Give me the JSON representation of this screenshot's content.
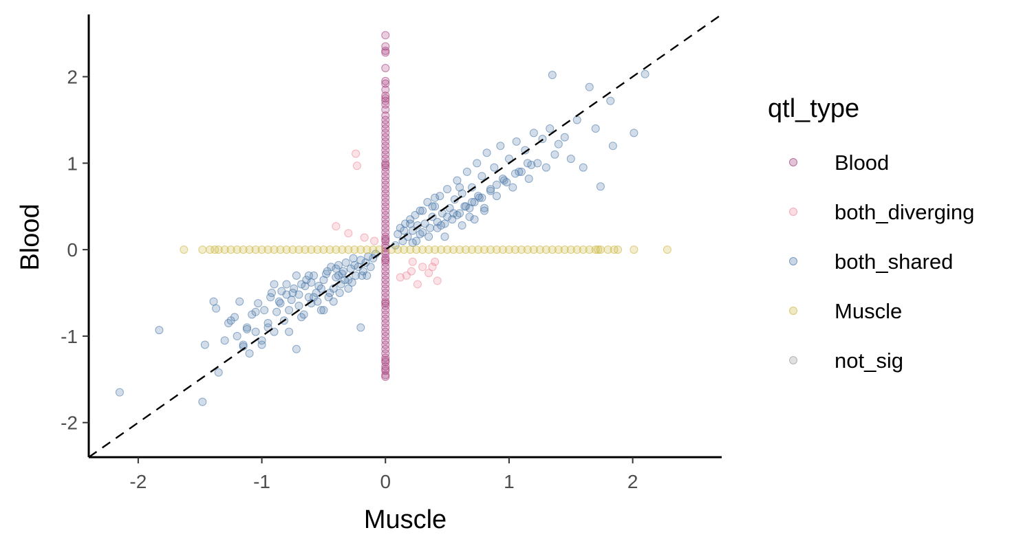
{
  "chart_data": {
    "type": "scatter",
    "xlabel": "Muscle",
    "ylabel": "Blood",
    "xlim": [
      -2.4,
      2.72
    ],
    "ylim": [
      -2.4,
      2.72
    ],
    "x_ticks": [
      -2,
      -1,
      0,
      1,
      2
    ],
    "x_tick_labels": [
      "-2",
      "-1",
      "0",
      "1",
      "2"
    ],
    "y_ticks": [
      -2,
      -1,
      0,
      1,
      2
    ],
    "y_tick_labels": [
      "-2",
      "-1",
      "0",
      "1",
      "2"
    ],
    "grid": false,
    "reference_line": {
      "style": "dashed",
      "slope": 1,
      "intercept": 0
    },
    "legend": {
      "title": "qtl_type",
      "placement": "right",
      "entries": [
        {
          "name": "Blood",
          "color": "#A23A7C"
        },
        {
          "name": "both_diverging",
          "color": "#F08A9A"
        },
        {
          "name": "both_shared",
          "color": "#4A78A8"
        },
        {
          "name": "Muscle",
          "color": "#CBB640"
        },
        {
          "name": "not_sig",
          "color": "#9A9A9A"
        }
      ]
    },
    "series": [
      {
        "name": "Blood",
        "color": "#A23A7C",
        "x": [
          0,
          0,
          0,
          0,
          0,
          0,
          0,
          0,
          0,
          0,
          0,
          0,
          0,
          0,
          0,
          0,
          0,
          0,
          0,
          0,
          0,
          0,
          0,
          0,
          0,
          0,
          0,
          0,
          0,
          0,
          0,
          0,
          0,
          0,
          0,
          0,
          0,
          0,
          0,
          0,
          0,
          0,
          0,
          0,
          0,
          0,
          0,
          0,
          0,
          0,
          0,
          0,
          0,
          0,
          0,
          0,
          0,
          0,
          0,
          0,
          0,
          0,
          0,
          0,
          0,
          0,
          0,
          0,
          0,
          0,
          0,
          0,
          0,
          0,
          0,
          0,
          0,
          0,
          0,
          0,
          0,
          0
        ],
        "y": [
          2.48,
          2.35,
          2.3,
          2.28,
          2.1,
          1.95,
          1.78,
          1.72,
          1.68,
          1.62,
          1.55,
          1.5,
          1.45,
          1.4,
          1.35,
          1.3,
          1.25,
          1.2,
          1.15,
          1.1,
          1.05,
          1.0,
          0.95,
          0.9,
          0.85,
          0.8,
          0.75,
          0.7,
          0.65,
          0.6,
          0.55,
          0.5,
          0.45,
          0.4,
          0.35,
          0.3,
          0.25,
          0.2,
          0.15,
          0.1,
          0.05,
          -0.05,
          -0.1,
          -0.15,
          -0.2,
          -0.25,
          -0.3,
          -0.35,
          -0.4,
          -0.45,
          -0.5,
          -0.55,
          -0.6,
          -0.65,
          -0.7,
          -0.75,
          -0.8,
          -0.85,
          -0.9,
          -0.95,
          -1.0,
          -1.05,
          -1.1,
          -1.15,
          -1.2,
          -1.25,
          -1.3,
          -1.35,
          -1.4,
          -1.45,
          -1.47,
          -0.12,
          0.12,
          -0.02,
          0.02,
          1.92,
          1.85,
          1.75,
          0.98,
          -0.62,
          -1.38,
          -1.28
        ]
      },
      {
        "name": "both_diverging",
        "color": "#F08A9A",
        "x": [
          -0.24,
          -0.23,
          -0.4,
          -0.3,
          -0.17,
          -0.09,
          0.12,
          0.17,
          0.21,
          0.22,
          0.26,
          0.3,
          0.35,
          0.38,
          0.4,
          0.42
        ],
        "y": [
          1.11,
          0.97,
          0.27,
          0.19,
          0.14,
          0.1,
          -0.32,
          -0.3,
          -0.25,
          -0.14,
          -0.4,
          -0.2,
          -0.27,
          -0.2,
          -0.14,
          -0.36
        ]
      },
      {
        "name": "both_shared",
        "color": "#4A78A8",
        "x": [
          -2.15,
          -1.83,
          -1.48,
          -1.46,
          -1.39,
          -1.37,
          -1.35,
          -1.3,
          -1.27,
          -1.22,
          -1.2,
          -1.18,
          -1.15,
          -1.12,
          -1.1,
          -1.08,
          -1.05,
          -1.03,
          -1.0,
          -0.98,
          -0.95,
          -0.93,
          -0.9,
          -0.88,
          -0.86,
          -0.84,
          -0.82,
          -0.8,
          -0.78,
          -0.76,
          -0.74,
          -0.72,
          -0.7,
          -0.68,
          -0.66,
          -0.64,
          -0.62,
          -0.6,
          -0.58,
          -0.56,
          -0.54,
          -0.52,
          -0.5,
          -0.48,
          -0.46,
          -0.44,
          -0.42,
          -0.4,
          -0.38,
          -0.36,
          -0.34,
          -0.32,
          -0.3,
          -0.28,
          -0.26,
          -0.24,
          -0.22,
          -0.2,
          -0.18,
          -0.16,
          -0.14,
          -0.12,
          -0.1,
          -0.08,
          -1.25,
          -1.15,
          -1.05,
          -0.95,
          -0.85,
          -0.75,
          -0.65,
          -0.55,
          -0.45,
          -0.35,
          -0.25,
          -0.15,
          -1.0,
          -0.9,
          -0.8,
          -0.7,
          -0.6,
          -0.5,
          -0.4,
          -0.3,
          -0.2,
          -0.92,
          -0.78,
          -0.58,
          -0.42,
          -0.27,
          -0.62,
          -0.47,
          -0.37,
          -0.19,
          -0.72,
          -0.52,
          -0.33,
          -1.12,
          -0.68,
          -0.38,
          0.08,
          0.1,
          0.12,
          0.14,
          0.16,
          0.18,
          0.2,
          0.22,
          0.24,
          0.26,
          0.28,
          0.3,
          0.32,
          0.34,
          0.36,
          0.38,
          0.4,
          0.42,
          0.44,
          0.46,
          0.48,
          0.5,
          0.52,
          0.54,
          0.56,
          0.58,
          0.6,
          0.62,
          0.64,
          0.66,
          0.68,
          0.7,
          0.72,
          0.74,
          0.76,
          0.78,
          0.8,
          0.82,
          0.85,
          0.88,
          0.9,
          0.93,
          0.96,
          1.0,
          1.03,
          1.06,
          1.1,
          1.13,
          1.16,
          1.2,
          1.23,
          1.27,
          1.3,
          1.33,
          1.37,
          1.4,
          1.45,
          1.5,
          1.55,
          1.6,
          1.65,
          1.7,
          1.74,
          1.82,
          1.84,
          2.01,
          2.1,
          1.35,
          0.4,
          0.6,
          0.8,
          0.3,
          0.5,
          0.7,
          0.9,
          0.25,
          0.45,
          0.65,
          0.85,
          1.05,
          0.35,
          0.55,
          0.75,
          0.95,
          1.15,
          0.2,
          0.62,
          0.48,
          0.28,
          0.72,
          0.15,
          0.38,
          0.58,
          0.78,
          0.98,
          1.18,
          0.22,
          0.42,
          0.68,
          1.08
        ],
        "y": [
          -1.65,
          -0.93,
          -1.76,
          -1.1,
          -0.6,
          -0.68,
          -1.42,
          -1.05,
          -0.85,
          -0.78,
          -1.0,
          -0.6,
          -1.1,
          -0.9,
          -1.2,
          -0.75,
          -0.95,
          -0.62,
          -1.05,
          -0.7,
          -0.85,
          -0.55,
          -0.95,
          -0.72,
          -0.6,
          -0.48,
          -0.82,
          -0.4,
          -0.7,
          -0.58,
          -0.45,
          -1.15,
          -0.52,
          -0.4,
          -0.75,
          -0.35,
          -0.55,
          -0.62,
          -0.3,
          -0.5,
          -0.42,
          -0.7,
          -0.35,
          -0.28,
          -0.55,
          -0.2,
          -0.45,
          -0.32,
          -0.18,
          -0.4,
          -0.25,
          -0.15,
          -0.35,
          -0.22,
          -0.1,
          -0.3,
          -0.2,
          -0.12,
          -0.25,
          -0.15,
          -0.08,
          -0.2,
          -0.1,
          -0.05,
          -0.82,
          -1.12,
          -0.72,
          -0.9,
          -0.62,
          -0.5,
          -0.42,
          -0.6,
          -0.5,
          -0.28,
          -0.18,
          -0.3,
          -1.1,
          -0.4,
          -0.52,
          -0.65,
          -0.38,
          -0.7,
          -0.22,
          -0.45,
          -0.9,
          -0.5,
          -0.95,
          -0.55,
          -0.6,
          -0.38,
          -0.3,
          -0.25,
          -0.5,
          -0.3,
          -0.3,
          -0.45,
          -0.35,
          -0.92,
          -0.78,
          -0.3,
          0.05,
          0.18,
          0.25,
          0.1,
          0.3,
          0.15,
          0.35,
          0.22,
          0.4,
          0.28,
          0.18,
          0.45,
          0.3,
          0.55,
          0.25,
          0.38,
          0.5,
          0.32,
          0.62,
          0.42,
          0.3,
          0.7,
          0.48,
          0.35,
          0.58,
          0.8,
          0.42,
          0.65,
          0.5,
          0.9,
          0.38,
          0.72,
          0.55,
          1.0,
          0.6,
          0.85,
          0.48,
          1.12,
          0.7,
          0.95,
          0.62,
          1.2,
          0.8,
          1.05,
          0.72,
          1.25,
          0.9,
          1.15,
          0.82,
          1.35,
          1.0,
          1.28,
          0.95,
          1.4,
          1.1,
          1.22,
          1.3,
          1.05,
          1.5,
          0.95,
          1.88,
          1.4,
          0.73,
          1.72,
          1.2,
          1.35,
          2.03,
          2.02,
          0.6,
          0.72,
          0.45,
          0.2,
          0.38,
          0.55,
          0.75,
          0.1,
          0.28,
          0.5,
          0.68,
          0.88,
          0.15,
          0.42,
          0.62,
          0.82,
          1.0,
          0.3,
          0.28,
          0.15,
          0.45,
          0.35,
          0.22,
          0.5,
          0.4,
          0.6,
          0.78,
          0.98,
          0.08,
          0.25,
          0.48,
          0.9
        ]
      },
      {
        "name": "Muscle",
        "color": "#CBB640",
        "x": [
          -1.63,
          -1.48,
          -1.42,
          -1.38,
          -1.35,
          -1.3,
          -1.25,
          -1.2,
          -1.15,
          -1.1,
          -1.05,
          -1.0,
          -0.95,
          -0.9,
          -0.85,
          -0.8,
          -0.75,
          -0.7,
          -0.65,
          -0.6,
          -0.55,
          -0.5,
          -0.45,
          -0.4,
          -0.35,
          -0.3,
          -0.25,
          -0.2,
          -0.15,
          -0.1,
          -0.05,
          0.05,
          0.1,
          0.15,
          0.2,
          0.25,
          0.3,
          0.35,
          0.4,
          0.45,
          0.5,
          0.55,
          0.6,
          0.65,
          0.7,
          0.75,
          0.8,
          0.85,
          0.9,
          0.95,
          1.0,
          1.05,
          1.1,
          1.15,
          1.2,
          1.25,
          1.3,
          1.35,
          1.4,
          1.45,
          1.5,
          1.55,
          1.6,
          1.65,
          1.7,
          1.72,
          1.74,
          1.8,
          1.85,
          1.88,
          2.01,
          2.28
        ],
        "y": [
          0,
          0,
          0,
          0,
          0,
          0,
          0,
          0,
          0,
          0,
          0,
          0,
          0,
          0,
          0,
          0,
          0,
          0,
          0,
          0,
          0,
          0,
          0,
          0,
          0,
          0,
          0,
          0,
          0,
          0,
          0,
          0,
          0,
          0,
          0,
          0,
          0,
          0,
          0,
          0,
          0,
          0,
          0,
          0,
          0,
          0,
          0,
          0,
          0,
          0,
          0,
          0,
          0,
          0,
          0,
          0,
          0,
          0,
          0,
          0,
          0,
          0,
          0,
          0,
          0,
          0,
          0,
          0,
          0,
          0,
          0,
          0
        ]
      },
      {
        "name": "not_sig",
        "color": "#9A9A9A",
        "x": [],
        "y": []
      }
    ]
  }
}
